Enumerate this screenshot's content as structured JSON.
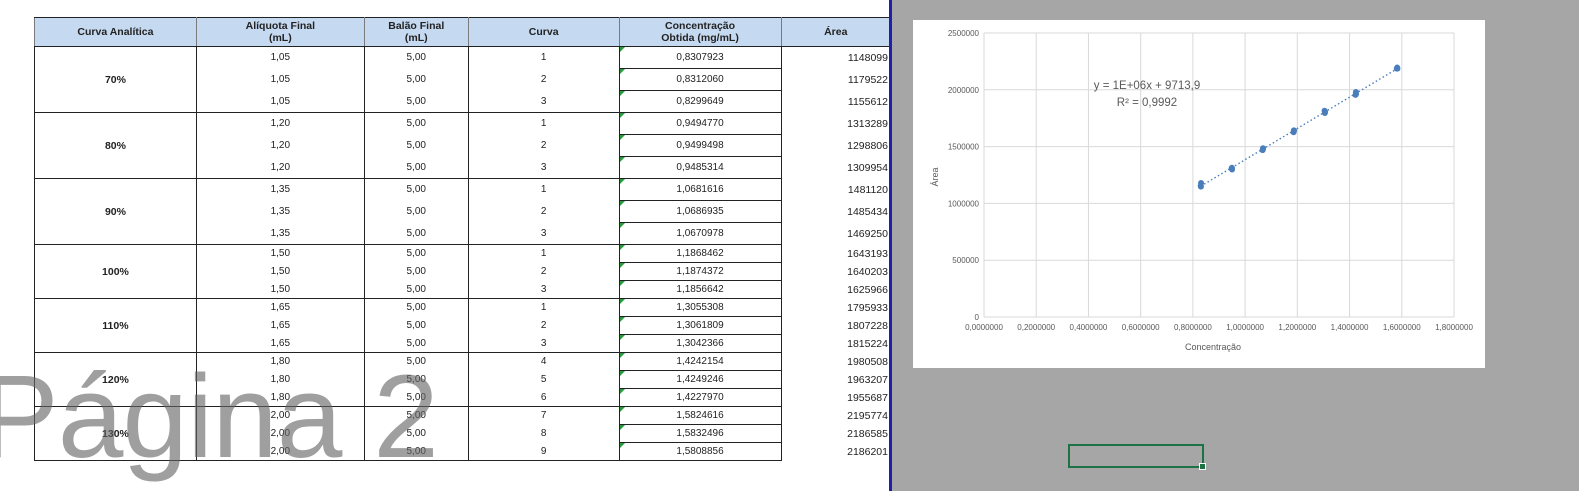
{
  "table": {
    "headers": {
      "curve_group": "Curva Analítica",
      "aliquot": [
        "Alíquota  Final",
        "(mL)"
      ],
      "flask": [
        "Balão Final",
        "(mL)"
      ],
      "curve": "Curva",
      "concentration": [
        "Concentração",
        "Obtida (mg/mL)"
      ],
      "area": "Área"
    },
    "groups": [
      {
        "label": "70%",
        "rows": [
          {
            "aliquot": "1,05",
            "flask": "5,00",
            "curve": "1",
            "conc": "0,8307923",
            "area": "1148099"
          },
          {
            "aliquot": "1,05",
            "flask": "5,00",
            "curve": "2",
            "conc": "0,8312060",
            "area": "1179522"
          },
          {
            "aliquot": "1,05",
            "flask": "5,00",
            "curve": "3",
            "conc": "0,8299649",
            "area": "1155612"
          }
        ]
      },
      {
        "label": "80%",
        "rows": [
          {
            "aliquot": "1,20",
            "flask": "5,00",
            "curve": "1",
            "conc": "0,9494770",
            "area": "1313289"
          },
          {
            "aliquot": "1,20",
            "flask": "5,00",
            "curve": "2",
            "conc": "0,9499498",
            "area": "1298806"
          },
          {
            "aliquot": "1,20",
            "flask": "5,00",
            "curve": "3",
            "conc": "0,9485314",
            "area": "1309954"
          }
        ]
      },
      {
        "label": "90%",
        "rows": [
          {
            "aliquot": "1,35",
            "flask": "5,00",
            "curve": "1",
            "conc": "1,0681616",
            "area": "1481120"
          },
          {
            "aliquot": "1,35",
            "flask": "5,00",
            "curve": "2",
            "conc": "1,0686935",
            "area": "1485434"
          },
          {
            "aliquot": "1,35",
            "flask": "5,00",
            "curve": "3",
            "conc": "1,0670978",
            "area": "1469250"
          }
        ]
      },
      {
        "label": "100%",
        "rows": [
          {
            "aliquot": "1,50",
            "flask": "5,00",
            "curve": "1",
            "conc": "1,1868462",
            "area": "1643193"
          },
          {
            "aliquot": "1,50",
            "flask": "5,00",
            "curve": "2",
            "conc": "1,1874372",
            "area": "1640203"
          },
          {
            "aliquot": "1,50",
            "flask": "5,00",
            "curve": "3",
            "conc": "1,1856642",
            "area": "1625966"
          }
        ]
      },
      {
        "label": "110%",
        "rows": [
          {
            "aliquot": "1,65",
            "flask": "5,00",
            "curve": "1",
            "conc": "1,3055308",
            "area": "1795933"
          },
          {
            "aliquot": "1,65",
            "flask": "5,00",
            "curve": "2",
            "conc": "1,3061809",
            "area": "1807228"
          },
          {
            "aliquot": "1,65",
            "flask": "5,00",
            "curve": "3",
            "conc": "1,3042366",
            "area": "1815224"
          }
        ]
      },
      {
        "label": "120%",
        "rows": [
          {
            "aliquot": "1,80",
            "flask": "5,00",
            "curve": "4",
            "conc": "1,4242154",
            "area": "1980508"
          },
          {
            "aliquot": "1,80",
            "flask": "5,00",
            "curve": "5",
            "conc": "1,4249246",
            "area": "1963207"
          },
          {
            "aliquot": "1,80",
            "flask": "5,00",
            "curve": "6",
            "conc": "1,4227970",
            "area": "1955687"
          }
        ]
      },
      {
        "label": "130%",
        "rows": [
          {
            "aliquot": "2,00",
            "flask": "5,00",
            "curve": "7",
            "conc": "1,5824616",
            "area": "2195774"
          },
          {
            "aliquot": "2,00",
            "flask": "5,00",
            "curve": "8",
            "conc": "1,5832496",
            "area": "2186585"
          },
          {
            "aliquot": "2,00",
            "flask": "5,00",
            "curve": "9",
            "conc": "1,5808856",
            "area": "2186201"
          }
        ]
      }
    ]
  },
  "watermark": "Página 2",
  "chart_data": {
    "type": "scatter",
    "xlabel": "Concentração",
    "ylabel": "Área",
    "xlim": [
      0,
      1.8
    ],
    "ylim": [
      0,
      2500000
    ],
    "x_ticks": [
      "0,0000000",
      "0,2000000",
      "0,4000000",
      "0,6000000",
      "0,8000000",
      "1,0000000",
      "1,2000000",
      "1,4000000",
      "1,6000000",
      "1,8000000"
    ],
    "y_ticks": [
      "0",
      "500000",
      "1000000",
      "1500000",
      "2000000",
      "2500000"
    ],
    "trendline": {
      "type": "linear",
      "equation": "y = 1E+06x + 9713,9",
      "r2": "R² = 0,9992",
      "style": "dotted"
    },
    "grid": true,
    "points": [
      [
        0.8307923,
        1148099
      ],
      [
        0.831206,
        1179522
      ],
      [
        0.8299649,
        1155612
      ],
      [
        0.949477,
        1313289
      ],
      [
        0.9499498,
        1298806
      ],
      [
        0.9485314,
        1309954
      ],
      [
        1.0681616,
        1481120
      ],
      [
        1.0686935,
        1485434
      ],
      [
        1.0670978,
        1469250
      ],
      [
        1.1868462,
        1643193
      ],
      [
        1.1874372,
        1640203
      ],
      [
        1.1856642,
        1625966
      ],
      [
        1.3055308,
        1795933
      ],
      [
        1.3061809,
        1807228
      ],
      [
        1.3042366,
        1815224
      ],
      [
        1.4242154,
        1980508
      ],
      [
        1.4249246,
        1963207
      ],
      [
        1.422797,
        1955687
      ],
      [
        1.5824616,
        2195774
      ],
      [
        1.5832496,
        2186585
      ],
      [
        1.5808856,
        2186201
      ]
    ]
  },
  "colors": {
    "header_bg": "#c5d9f1",
    "point": "#4a7ebb",
    "selection": "#1e7145",
    "gray_area": "#a6a6a6",
    "page_break": "#1f1fa8"
  }
}
